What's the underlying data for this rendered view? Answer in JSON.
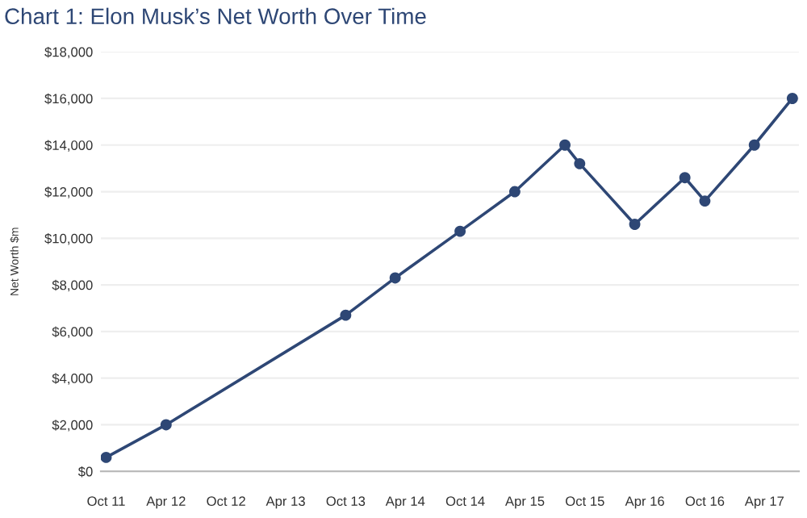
{
  "chart_data": {
    "type": "line",
    "title": "Chart 1: Elon Musk’s Net Worth Over Time",
    "ylabel": "Net Worth $m",
    "x": [
      "2011-10-01",
      "2012-04-01",
      "2013-10-01",
      "2014-03-01",
      "2014-09-15",
      "2015-03-01",
      "2015-08-01",
      "2015-09-15",
      "2016-03-01",
      "2016-08-01",
      "2016-10-01",
      "2017-03-01",
      "2017-06-25"
    ],
    "series": [
      {
        "color": "#2e4775",
        "values": [
          600,
          2000,
          6700,
          8300,
          10300,
          12000,
          14000,
          13200,
          10600,
          12600,
          11600,
          14000,
          16000
        ]
      }
    ],
    "xlim": [
      "2011-09-15",
      "2017-07-15"
    ],
    "xticks": [
      {
        "value": "2011-10-01",
        "label": "Oct 11"
      },
      {
        "value": "2012-04-01",
        "label": "Apr 12"
      },
      {
        "value": "2012-10-01",
        "label": "Oct 12"
      },
      {
        "value": "2013-04-01",
        "label": "Apr 13"
      },
      {
        "value": "2013-10-01",
        "label": "Oct 13"
      },
      {
        "value": "2014-04-01",
        "label": "Apr 14"
      },
      {
        "value": "2014-10-01",
        "label": "Oct 14"
      },
      {
        "value": "2015-04-01",
        "label": "Apr 15"
      },
      {
        "value": "2015-10-01",
        "label": "Oct 15"
      },
      {
        "value": "2016-04-01",
        "label": "Apr 16"
      },
      {
        "value": "2016-10-01",
        "label": "Oct 16"
      },
      {
        "value": "2017-04-01",
        "label": "Apr 17"
      }
    ],
    "ylim": [
      0,
      18000
    ],
    "yticks": [
      {
        "value": 0,
        "label": "$0"
      },
      {
        "value": 2000,
        "label": "$2,000"
      },
      {
        "value": 4000,
        "label": "$4,000"
      },
      {
        "value": 6000,
        "label": "$6,000"
      },
      {
        "value": 8000,
        "label": "$8,000"
      },
      {
        "value": 10000,
        "label": "$10,000"
      },
      {
        "value": 12000,
        "label": "$12,000"
      },
      {
        "value": 14000,
        "label": "$14,000"
      },
      {
        "value": 16000,
        "label": "$16,000"
      },
      {
        "value": 18000,
        "label": "$18,000"
      }
    ],
    "grid": "y",
    "marker": "circle",
    "line_style": "solid"
  }
}
